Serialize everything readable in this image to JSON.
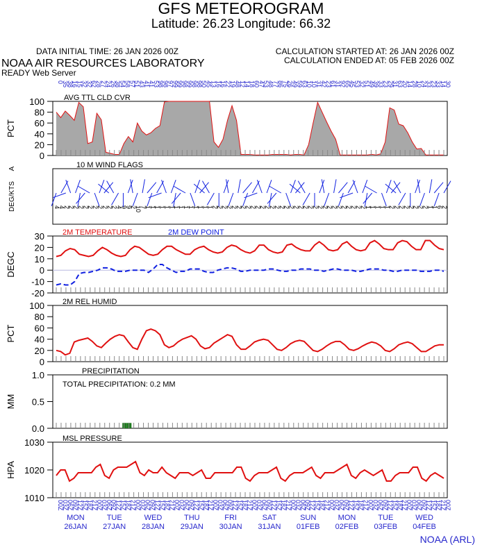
{
  "header": {
    "title": "GFS METEOROGRAM",
    "coords": "Latitude: 26.23 Longitude:  66.32",
    "initial_time": "DATA INITIAL TIME: 26 JAN 2026 00Z",
    "calc_started": "CALCULATION STARTED AT: 26 JAN 2026 00Z",
    "calc_ended": "CALCULATION ENDED AT: 05 FEB 2026 00Z",
    "org": "NOAA AIR RESOURCES LABORATORY",
    "server": "READY Web Server",
    "credit": "NOAA (ARL)"
  },
  "colors": {
    "red": "#e01010",
    "blue": "#1020e0",
    "text_blue": "#2626cc",
    "gray": "#a8a8a8",
    "green": "#1f7a1f",
    "tick": "#888888"
  },
  "time_axis": {
    "hours": [
      "00",
      "03",
      "06",
      "09",
      "12",
      "15",
      "18",
      "21",
      "00",
      "03",
      "06",
      "09",
      "12",
      "15",
      "18",
      "21",
      "00",
      "03",
      "06",
      "09",
      "12",
      "15",
      "18",
      "21",
      "00",
      "03",
      "06",
      "09",
      "12",
      "15",
      "18",
      "21",
      "00",
      "03",
      "06",
      "09",
      "12",
      "15",
      "18",
      "21",
      "00",
      "03",
      "06",
      "09",
      "12",
      "15",
      "18",
      "21",
      "00",
      "03",
      "06",
      "09",
      "12",
      "15",
      "18",
      "21",
      "00",
      "03",
      "06",
      "09",
      "12",
      "15",
      "18",
      "21",
      "00",
      "03",
      "06",
      "09",
      "12",
      "15",
      "18",
      "21",
      "00",
      "03",
      "06",
      "09",
      "12",
      "15",
      "18",
      "21",
      "00"
    ],
    "days": [
      {
        "dow": "MON",
        "date": "26JAN"
      },
      {
        "dow": "TUE",
        "date": "27JAN"
      },
      {
        "dow": "WED",
        "date": "28JAN"
      },
      {
        "dow": "THU",
        "date": "29JAN"
      },
      {
        "dow": "FRI",
        "date": "30JAN"
      },
      {
        "dow": "SAT",
        "date": "31JAN"
      },
      {
        "dow": "SUN",
        "date": "01FEB"
      },
      {
        "dow": "MON",
        "date": "02FEB"
      },
      {
        "dow": "TUE",
        "date": "03FEB"
      },
      {
        "dow": "WED",
        "date": "04FEB"
      }
    ]
  },
  "chart_data": [
    {
      "type": "area",
      "title": "AVG TTL CLD CVR",
      "ylabel": "PCT",
      "ylim": [
        0,
        100
      ],
      "yticks": [
        0,
        20,
        40,
        60,
        80,
        100
      ],
      "top_labels": [
        "0",
        "35",
        "38",
        "16",
        "15",
        "32",
        "32",
        "62",
        "28",
        "27",
        "24",
        "26",
        "38",
        "54",
        "58",
        "57",
        "51",
        "43",
        "41",
        "41",
        "53",
        "98",
        "98",
        "97",
        "99",
        "99",
        "98",
        "99",
        "98",
        "98",
        "50",
        "45",
        "13",
        "16",
        "16",
        "22",
        "19",
        "48",
        "12",
        "14",
        "18",
        "60",
        "47",
        "53",
        "48",
        "77",
        "86",
        "75",
        "26",
        "49",
        "59",
        "63",
        "10",
        "10",
        "31",
        "42",
        "23",
        "61",
        "31",
        "92",
        "65",
        "45",
        "53",
        "32",
        "51",
        "49",
        "39",
        "33",
        "23",
        "29",
        "31",
        "63",
        "20",
        "14",
        "28",
        "10",
        "24",
        "33",
        "23",
        "33",
        "14",
        "30"
      ],
      "series": [
        {
          "name": "cloud",
          "values": [
            80,
            70,
            82,
            74,
            65,
            98,
            90,
            22,
            25,
            78,
            66,
            6,
            4,
            2,
            2,
            22,
            35,
            25,
            60,
            45,
            38,
            42,
            50,
            55,
            99,
            100,
            100,
            100,
            100,
            100,
            100,
            100,
            100,
            100,
            100,
            25,
            15,
            30,
            65,
            92,
            65,
            2,
            2,
            2,
            1,
            1,
            1,
            1,
            2,
            2,
            2,
            2,
            1,
            2,
            2,
            1,
            20,
            60,
            98,
            80,
            62,
            45,
            30,
            1,
            1,
            1,
            1,
            1,
            1,
            1,
            2,
            1,
            3,
            25,
            88,
            84,
            58,
            55,
            42,
            25,
            12,
            13,
            1,
            1,
            1,
            1,
            1
          ]
        }
      ]
    },
    {
      "type": "wind",
      "title": "10 M  WIND FLAGS",
      "ylabel": "DEG/KTS",
      "speed_labels": [
        "4",
        "4",
        "2",
        "2",
        "2",
        "2",
        "2",
        "2",
        "2",
        "2",
        "2",
        "2",
        "2",
        "4",
        "9",
        "9",
        "2",
        "10",
        "7",
        "1",
        "1",
        "1",
        "1",
        "1",
        "1",
        "1",
        "1",
        "1",
        "1",
        "1",
        "1",
        "1",
        "1",
        "2",
        "2",
        "2",
        "2",
        "2",
        "2",
        "2",
        "2",
        "2",
        "2",
        "2",
        "2",
        "2",
        "2",
        "2",
        "2",
        "2",
        "2",
        "2",
        "2",
        "2",
        "2",
        "2",
        "2",
        "2",
        "2",
        "2",
        "2",
        "2",
        "2",
        "2",
        "2",
        "1",
        "1",
        "1",
        "1",
        "1",
        "2",
        "2",
        "2",
        "2",
        "2",
        "2",
        "2",
        "2",
        "1",
        "1",
        "6",
        "2"
      ]
    },
    {
      "type": "line",
      "title_left": "2M TEMPERATURE",
      "title_right": "2M  DEW POINT",
      "ylabel": "DEGC",
      "ylim": [
        -20,
        30
      ],
      "yticks": [
        -20,
        -10,
        0,
        10,
        20,
        30
      ],
      "series": [
        {
          "name": "2M TEMPERATURE",
          "values": [
            12,
            13,
            17,
            19,
            18,
            14,
            13,
            12,
            13,
            17,
            20,
            18,
            15,
            13,
            12,
            13,
            18,
            21,
            20,
            17,
            14,
            13,
            14,
            18,
            21,
            21,
            18,
            16,
            14,
            14,
            18,
            20,
            21,
            18,
            16,
            15,
            16,
            20,
            22,
            21,
            18,
            16,
            15,
            17,
            22,
            22,
            18,
            16,
            15,
            16,
            22,
            23,
            20,
            18,
            17,
            17,
            22,
            25,
            22,
            18,
            17,
            18,
            23,
            25,
            21,
            18,
            17,
            18,
            24,
            26,
            23,
            19,
            18,
            18,
            24,
            26,
            25,
            21,
            18,
            18,
            26,
            26,
            22,
            19,
            18
          ]
        },
        {
          "name": "2M  DEW POINT",
          "values": [
            -13,
            -12,
            -13,
            -13,
            -10,
            -3,
            -2,
            -2,
            -1,
            0,
            2,
            2,
            1,
            -1,
            -1,
            -1,
            0,
            0,
            0,
            0,
            -2,
            1,
            5,
            5,
            2,
            0,
            -2,
            -1,
            -1,
            1,
            1,
            1,
            -1,
            -2,
            -2,
            0,
            1,
            2,
            2,
            1,
            -1,
            -1,
            0,
            0,
            0,
            0,
            1,
            1,
            0,
            -1,
            -1,
            0,
            0,
            1,
            1,
            1,
            0,
            0,
            -1,
            0,
            1,
            1,
            0,
            0,
            0,
            -1,
            -1,
            0,
            1,
            1,
            1,
            0,
            0,
            -1,
            -1,
            0,
            0,
            0,
            0,
            -1,
            -1,
            -1,
            0,
            0,
            -1
          ]
        }
      ]
    },
    {
      "type": "line",
      "title": "2M REL HUMID",
      "ylabel": "PCT",
      "ylim": [
        0,
        100
      ],
      "yticks": [
        0,
        20,
        40,
        60,
        80,
        100
      ],
      "series": [
        {
          "name": "2M REL HUMID",
          "values": [
            20,
            18,
            12,
            15,
            35,
            38,
            40,
            42,
            36,
            28,
            25,
            33,
            40,
            45,
            48,
            46,
            35,
            25,
            22,
            40,
            55,
            58,
            55,
            48,
            30,
            25,
            28,
            35,
            40,
            43,
            46,
            40,
            28,
            23,
            25,
            33,
            38,
            43,
            48,
            45,
            30,
            22,
            22,
            28,
            35,
            38,
            40,
            38,
            30,
            22,
            20,
            25,
            32,
            36,
            38,
            36,
            28,
            20,
            18,
            22,
            28,
            33,
            36,
            36,
            30,
            22,
            20,
            23,
            28,
            32,
            35,
            33,
            28,
            20,
            18,
            23,
            30,
            33,
            35,
            32,
            25,
            18,
            18,
            23,
            28,
            30,
            30
          ]
        }
      ]
    },
    {
      "type": "bar",
      "title": "PRECIPITATION",
      "ylabel": "MM",
      "ylim": [
        0,
        1
      ],
      "yticks": [
        0.0,
        0.5,
        1.0
      ],
      "total": "TOTAL PRECIPITATION:   0.2 MM",
      "series": [
        {
          "name": "precip",
          "values": [
            0,
            0,
            0,
            0,
            0,
            0,
            0,
            0,
            0,
            0,
            0,
            0,
            0,
            0,
            0,
            0.1,
            0.1,
            0,
            0,
            0,
            0,
            0,
            0,
            0,
            0,
            0,
            0,
            0,
            0,
            0,
            0,
            0,
            0,
            0,
            0,
            0,
            0,
            0,
            0,
            0,
            0,
            0,
            0,
            0,
            0,
            0,
            0,
            0,
            0,
            0,
            0,
            0,
            0,
            0,
            0,
            0,
            0,
            0,
            0,
            0,
            0,
            0,
            0,
            0,
            0,
            0,
            0,
            0,
            0,
            0,
            0,
            0,
            0,
            0,
            0,
            0,
            0,
            0,
            0,
            0,
            0,
            0,
            0,
            0,
            0,
            0
          ]
        }
      ]
    },
    {
      "type": "line",
      "title": "MSL PRESSURE",
      "ylabel": "HPA",
      "ylim": [
        1010,
        1030
      ],
      "yticks": [
        1010,
        1020,
        1030
      ],
      "series": [
        {
          "name": "MSL PRESSURE",
          "values": [
            1018,
            1020,
            1020,
            1016,
            1017,
            1019,
            1019,
            1019,
            1019,
            1021,
            1022,
            1018,
            1017,
            1020,
            1021,
            1021,
            1021,
            1022,
            1023,
            1019,
            1018,
            1020,
            1019,
            1019,
            1021,
            1019,
            1018,
            1017,
            1019,
            1019,
            1019,
            1018,
            1019,
            1020,
            1017,
            1017,
            1019,
            1019,
            1019,
            1019,
            1019,
            1021,
            1021,
            1017,
            1016,
            1018,
            1019,
            1019,
            1019,
            1020,
            1021,
            1017,
            1016,
            1018,
            1019,
            1019,
            1019,
            1020,
            1021,
            1018,
            1017,
            1019,
            1019,
            1019,
            1020,
            1021,
            1022,
            1018,
            1017,
            1019,
            1020,
            1019,
            1018,
            1019,
            1020,
            1016,
            1016,
            1018,
            1019,
            1019,
            1019,
            1021,
            1021,
            1017,
            1016,
            1018,
            1019,
            1018,
            1017
          ]
        }
      ]
    }
  ]
}
